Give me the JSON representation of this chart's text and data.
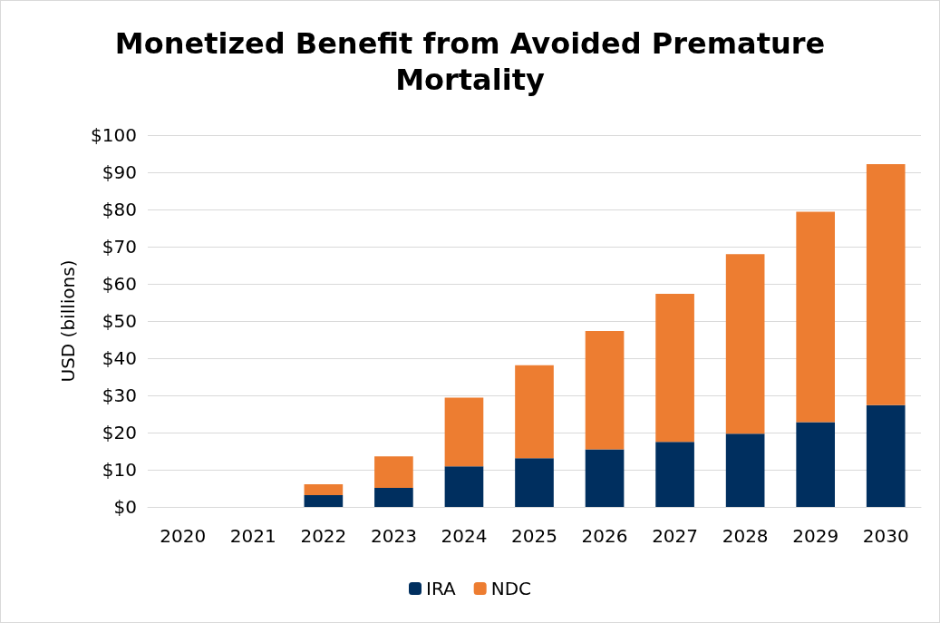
{
  "chart_data": {
    "type": "bar",
    "title": "Monetized Benefit from Avoided Premature\nMortality",
    "ylabel": "USD (billions)",
    "categories": [
      "2020",
      "2021",
      "2022",
      "2023",
      "2024",
      "2025",
      "2026",
      "2027",
      "2028",
      "2029",
      "2030"
    ],
    "stacked": true,
    "series": [
      {
        "name": "IRA",
        "color": "#002f5f",
        "values": [
          0,
          0,
          3.2,
          5.1,
          10.9,
          13.1,
          15.5,
          17.5,
          19.7,
          22.8,
          27.4
        ]
      },
      {
        "name": "NDC",
        "color": "#ed7d31",
        "values": [
          0,
          0,
          2.9,
          8.5,
          18.5,
          25.0,
          31.8,
          39.8,
          48.3,
          56.6,
          64.8
        ]
      }
    ],
    "ylim": [
      0,
      100
    ],
    "yticks": [
      {
        "value": 0,
        "label": "$0"
      },
      {
        "value": 10,
        "label": "$10"
      },
      {
        "value": 20,
        "label": "$20"
      },
      {
        "value": 30,
        "label": "$30"
      },
      {
        "value": 40,
        "label": "$40"
      },
      {
        "value": 50,
        "label": "$50"
      },
      {
        "value": 60,
        "label": "$60"
      },
      {
        "value": 70,
        "label": "$70"
      },
      {
        "value": 80,
        "label": "$80"
      },
      {
        "value": 90,
        "label": "$90"
      },
      {
        "value": 100,
        "label": "$100"
      }
    ],
    "grid": "y",
    "legend": "bottom"
  }
}
